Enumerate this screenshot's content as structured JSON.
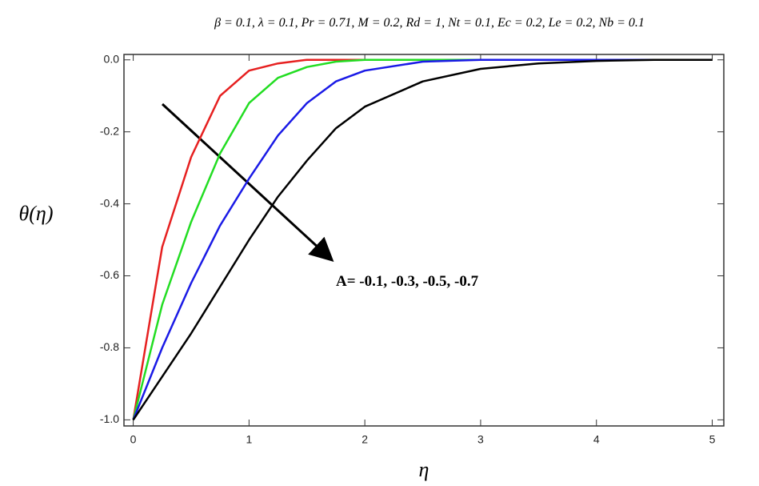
{
  "chart_data": {
    "type": "line",
    "title": "β = 0.1, λ = 0.1, Pr = 0.71, M = 0.2, Rd = 1, Nt = 0.1, Ec = 0.2, Le = 0.2, Nb = 0.1",
    "x_label": "η",
    "y_label": "θ(η)",
    "annotation": "A= -0.1, -0.3, -0.5, -0.7",
    "x": [
      0,
      0.25,
      0.5,
      0.75,
      1,
      1.25,
      1.5,
      1.75,
      2,
      2.5,
      3,
      3.5,
      4,
      4.5,
      5
    ],
    "series": [
      {
        "color": "#e62020",
        "values": [
          -1,
          -0.52,
          -0.27,
          -0.1,
          -0.03,
          -0.01,
          0,
          0,
          0,
          0,
          0,
          0,
          0,
          0,
          0
        ]
      },
      {
        "color": "#22dd22",
        "values": [
          -1,
          -0.68,
          -0.45,
          -0.26,
          -0.12,
          -0.05,
          -0.02,
          -0.005,
          0,
          0,
          0,
          0,
          0,
          0,
          0
        ]
      },
      {
        "color": "#1a1ae6",
        "values": [
          -1,
          -0.8,
          -0.62,
          -0.46,
          -0.33,
          -0.21,
          -0.12,
          -0.06,
          -0.03,
          -0.005,
          0,
          0,
          0,
          0,
          0
        ]
      },
      {
        "color": "#000000",
        "values": [
          -1,
          -0.88,
          -0.76,
          -0.63,
          -0.5,
          -0.38,
          -0.28,
          -0.19,
          -0.13,
          -0.06,
          -0.025,
          -0.01,
          -0.003,
          0,
          0
        ]
      }
    ],
    "xlim": [
      -0.08,
      5.1
    ],
    "ylim": [
      -1.017,
      0.015
    ],
    "xticks": [
      0,
      1,
      2,
      3,
      4,
      5
    ],
    "yticks": [
      {
        "value": -1.0,
        "label": "-1.0"
      },
      {
        "value": -0.8,
        "label": "-0.8"
      },
      {
        "value": -0.6,
        "label": "-0.6"
      },
      {
        "value": -0.4,
        "label": "-0.4"
      },
      {
        "value": -0.2,
        "label": "-0.2"
      },
      {
        "value": 0,
        "label": "0.0"
      }
    ],
    "grid": false
  }
}
